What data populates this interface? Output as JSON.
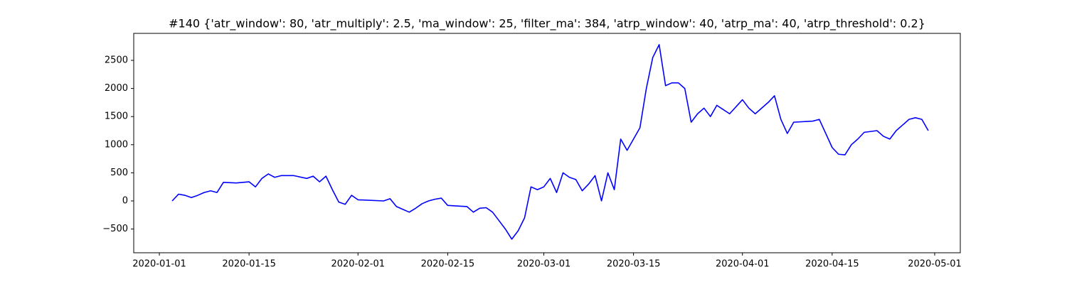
{
  "chart_data": {
    "type": "line",
    "title": "#140 {'atr_window': 80, 'atr_multiply': 2.5, 'ma_window': 25, 'filter_ma': 384, 'atrp_window': 40, 'atrp_ma': 40, 'atrp_threshold': 0.2}",
    "x": [
      "2020-01-03",
      "2020-01-04",
      "2020-01-05",
      "2020-01-06",
      "2020-01-07",
      "2020-01-08",
      "2020-01-09",
      "2020-01-10",
      "2020-01-11",
      "2020-01-13",
      "2020-01-15",
      "2020-01-16",
      "2020-01-17",
      "2020-01-18",
      "2020-01-19",
      "2020-01-20",
      "2020-01-22",
      "2020-01-24",
      "2020-01-25",
      "2020-01-26",
      "2020-01-27",
      "2020-01-28",
      "2020-01-29",
      "2020-01-30",
      "2020-01-31",
      "2020-02-01",
      "2020-02-05",
      "2020-02-06",
      "2020-02-07",
      "2020-02-08",
      "2020-02-09",
      "2020-02-10",
      "2020-02-11",
      "2020-02-12",
      "2020-02-13",
      "2020-02-14",
      "2020-02-15",
      "2020-02-18",
      "2020-02-19",
      "2020-02-20",
      "2020-02-21",
      "2020-02-22",
      "2020-02-23",
      "2020-02-24",
      "2020-02-25",
      "2020-02-26",
      "2020-02-27",
      "2020-02-28",
      "2020-02-29",
      "2020-03-01",
      "2020-03-02",
      "2020-03-03",
      "2020-03-04",
      "2020-03-05",
      "2020-03-06",
      "2020-03-07",
      "2020-03-08",
      "2020-03-09",
      "2020-03-10",
      "2020-03-11",
      "2020-03-12",
      "2020-03-13",
      "2020-03-14",
      "2020-03-15",
      "2020-03-16",
      "2020-03-17",
      "2020-03-18",
      "2020-03-19",
      "2020-03-20",
      "2020-03-21",
      "2020-03-22",
      "2020-03-23",
      "2020-03-24",
      "2020-03-25",
      "2020-03-26",
      "2020-03-27",
      "2020-03-28",
      "2020-03-30",
      "2020-04-01",
      "2020-04-02",
      "2020-04-03",
      "2020-04-05",
      "2020-04-06",
      "2020-04-07",
      "2020-04-08",
      "2020-04-09",
      "2020-04-12",
      "2020-04-13",
      "2020-04-14",
      "2020-04-15",
      "2020-04-16",
      "2020-04-17",
      "2020-04-18",
      "2020-04-19",
      "2020-04-20",
      "2020-04-22",
      "2020-04-23",
      "2020-04-24",
      "2020-04-25",
      "2020-04-26",
      "2020-04-27",
      "2020-04-28",
      "2020-04-29",
      "2020-04-30"
    ],
    "series": [
      {
        "color": "#0000ff",
        "values": [
          0,
          120,
          100,
          60,
          100,
          150,
          180,
          150,
          330,
          320,
          340,
          250,
          400,
          480,
          420,
          450,
          450,
          400,
          440,
          340,
          440,
          200,
          -20,
          -60,
          100,
          20,
          0,
          40,
          -100,
          -150,
          -200,
          -130,
          -50,
          0,
          30,
          50,
          -80,
          -100,
          -200,
          -130,
          -120,
          -200,
          -350,
          -500,
          -680,
          -530,
          -300,
          250,
          200,
          250,
          400,
          150,
          500,
          420,
          380,
          180,
          300,
          450,
          0,
          500,
          200,
          1100,
          900,
          1100,
          1300,
          2000,
          2550,
          2780,
          2050,
          2100,
          2100,
          2000,
          1400,
          1550,
          1650,
          1500,
          1700,
          1550,
          1800,
          1650,
          1550,
          1750,
          1870,
          1450,
          1200,
          1400,
          1420,
          1450,
          1200,
          950,
          830,
          820,
          1000,
          1100,
          1220,
          1250,
          1150,
          1100,
          1250,
          1350,
          1450,
          1480,
          1450,
          1250
        ]
      }
    ],
    "xlim": [
      "2019-12-28",
      "2020-05-05"
    ],
    "xticks": [
      "2020-01-01",
      "2020-01-15",
      "2020-02-01",
      "2020-02-15",
      "2020-03-01",
      "2020-03-15",
      "2020-04-01",
      "2020-04-15",
      "2020-05-01"
    ],
    "ylim": [
      -922,
      2980
    ],
    "yticks": [
      {
        "value": -500,
        "label": "−500"
      },
      0,
      500,
      1000,
      1500,
      2000,
      2500
    ]
  }
}
